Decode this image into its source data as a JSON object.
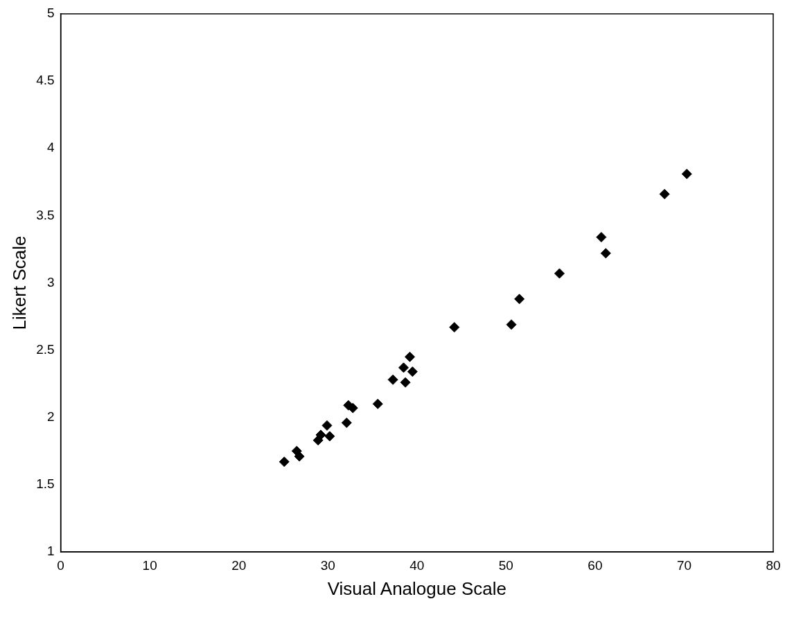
{
  "chart_data": {
    "type": "scatter",
    "xlabel": "Visual Analogue Scale",
    "ylabel": "Likert Scale",
    "x": [
      25.1,
      26.5,
      26.8,
      28.9,
      29.2,
      29.9,
      30.2,
      32.1,
      32.3,
      32.8,
      35.6,
      37.3,
      38.7,
      38.5,
      39.2,
      39.5,
      44.2,
      50.6,
      51.5,
      56.0,
      60.7,
      61.2,
      67.8,
      70.3
    ],
    "values": [
      1.67,
      1.75,
      1.71,
      1.83,
      1.87,
      1.94,
      1.86,
      1.96,
      2.09,
      2.07,
      2.1,
      2.28,
      2.26,
      2.37,
      2.45,
      2.34,
      2.67,
      2.69,
      2.88,
      3.07,
      3.34,
      3.22,
      3.66,
      3.81
    ],
    "color": "#000000",
    "marker": "diamond",
    "grid": false,
    "legend": false,
    "xlim": [
      0,
      80
    ],
    "xticks": [
      0,
      10,
      20,
      30,
      40,
      50,
      60,
      70,
      80
    ],
    "ylim": [
      1,
      5
    ],
    "yticks": [
      1,
      1.5,
      2,
      2.5,
      3,
      3.5,
      4,
      4.5,
      5
    ]
  }
}
